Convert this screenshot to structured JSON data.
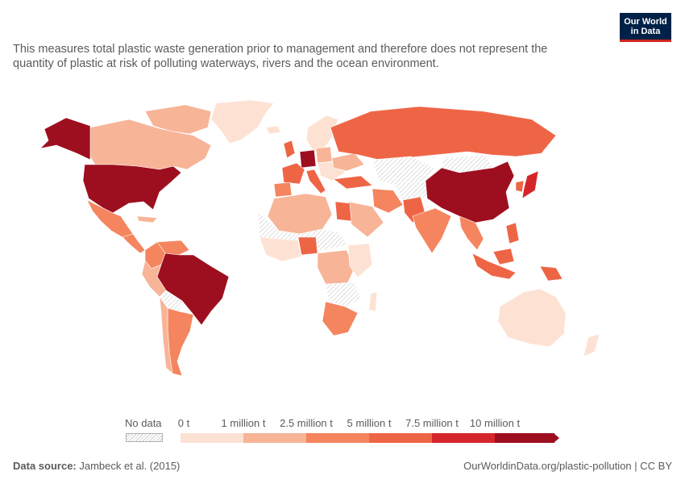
{
  "header": {
    "logo_line1": "Our World",
    "logo_line2": "in Data",
    "subtitle": "This measures total plastic waste generation prior to management and therefore does not represent the quantity of plastic at risk of polluting waterways, rivers and the ocean environment."
  },
  "legend": {
    "no_data_label": "No data",
    "ticks": [
      "0 t",
      "1 million t",
      "2.5 million t",
      "5 million t",
      "7.5 million t",
      "10 million t"
    ],
    "colors": [
      "#fde2d4",
      "#f7b497",
      "#f4855f",
      "#ee6546",
      "#d4262a",
      "#9d0f1f"
    ]
  },
  "footer": {
    "source_label": "Data source:",
    "source_value": "Jambeck et al. (2015)",
    "credit": "OurWorldinData.org/plastic-pollution | CC BY"
  },
  "colors": {
    "no_data_stroke": "#cfcfcf",
    "border": "#ffffff"
  }
}
